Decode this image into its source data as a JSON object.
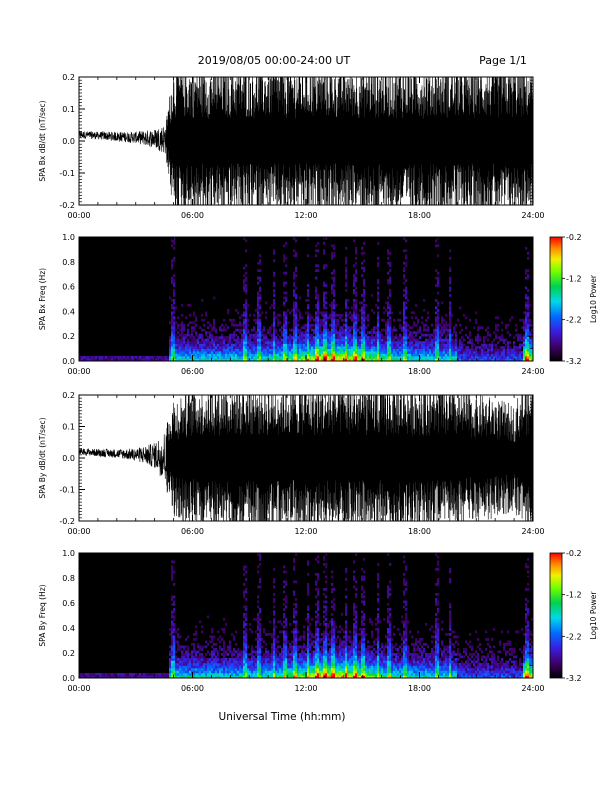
{
  "header": {
    "title": "2019/08/05  00:00-24:00 UT",
    "page": "Page 1/1"
  },
  "xlabel": "Universal Time (hh:mm)",
  "chart_data": [
    {
      "type": "line",
      "ylabel": "SPA Bx dB/dt (nT/sec)",
      "xlim": [
        0,
        24
      ],
      "ylim": [
        -0.2,
        0.2
      ],
      "xticks": [
        "00:00",
        "06:00",
        "12:00",
        "18:00",
        "24:00"
      ],
      "yticks": [
        "-0.2",
        "-0.1",
        "0.0",
        "0.1",
        "0.2"
      ],
      "envelope": {
        "hours": [
          0,
          1,
          2,
          3,
          4,
          4.6,
          5,
          6,
          7,
          8,
          9,
          10,
          11,
          12,
          13,
          14,
          15,
          16,
          17,
          18,
          19,
          20,
          21,
          22,
          23,
          23.5,
          24
        ],
        "amplitude": [
          0.012,
          0.012,
          0.015,
          0.018,
          0.03,
          0.05,
          0.2,
          0.2,
          0.2,
          0.2,
          0.2,
          0.2,
          0.2,
          0.2,
          0.2,
          0.2,
          0.2,
          0.2,
          0.2,
          0.2,
          0.2,
          0.2,
          0.2,
          0.2,
          0.2,
          0.2,
          0.2
        ]
      }
    },
    {
      "type": "heatmap",
      "ylabel": "SPA Bx Freq (Hz)",
      "xlim": [
        0,
        24
      ],
      "ylim": [
        0,
        1
      ],
      "xticks": [
        "00:00",
        "06:00",
        "12:00",
        "18:00",
        "24:00"
      ],
      "yticks": [
        "0.0",
        "0.2",
        "0.4",
        "0.6",
        "0.8",
        "1.0"
      ],
      "colorbar": {
        "label": "Log10 Power",
        "range": [
          -3.2,
          -0.2
        ],
        "ticks": [
          "-0.2",
          "-1.2",
          "-2.2",
          "-3.2"
        ]
      }
    },
    {
      "type": "line",
      "ylabel": "SPA By dB/dt (nT/sec)",
      "xlim": [
        0,
        24
      ],
      "ylim": [
        -0.2,
        0.2
      ],
      "xticks": [
        "00:00",
        "06:00",
        "12:00",
        "18:00",
        "24:00"
      ],
      "yticks": [
        "-0.2",
        "-0.1",
        "0.0",
        "0.1",
        "0.2"
      ],
      "envelope": {
        "hours": [
          0,
          1,
          2,
          3,
          4,
          4.6,
          5,
          6,
          7,
          8,
          9,
          10,
          11,
          12,
          13,
          14,
          15,
          16,
          17,
          18,
          19,
          20,
          21,
          22,
          23,
          23.5,
          24
        ],
        "amplitude": [
          0.01,
          0.012,
          0.014,
          0.02,
          0.04,
          0.09,
          0.16,
          0.19,
          0.2,
          0.2,
          0.2,
          0.2,
          0.2,
          0.2,
          0.2,
          0.2,
          0.2,
          0.2,
          0.2,
          0.2,
          0.2,
          0.18,
          0.17,
          0.16,
          0.14,
          0.2,
          0.2
        ]
      }
    },
    {
      "type": "heatmap",
      "ylabel": "SPA By Freq (Hz)",
      "xlim": [
        0,
        24
      ],
      "ylim": [
        0,
        1
      ],
      "xticks": [
        "00:00",
        "06:00",
        "12:00",
        "18:00",
        "24:00"
      ],
      "yticks": [
        "0.0",
        "0.2",
        "0.4",
        "0.6",
        "0.8",
        "1.0"
      ],
      "colorbar": {
        "label": "Log10 Power",
        "range": [
          -3.2,
          -0.2
        ],
        "ticks": [
          "-0.2",
          "-1.2",
          "-2.2",
          "-3.2"
        ]
      }
    }
  ]
}
